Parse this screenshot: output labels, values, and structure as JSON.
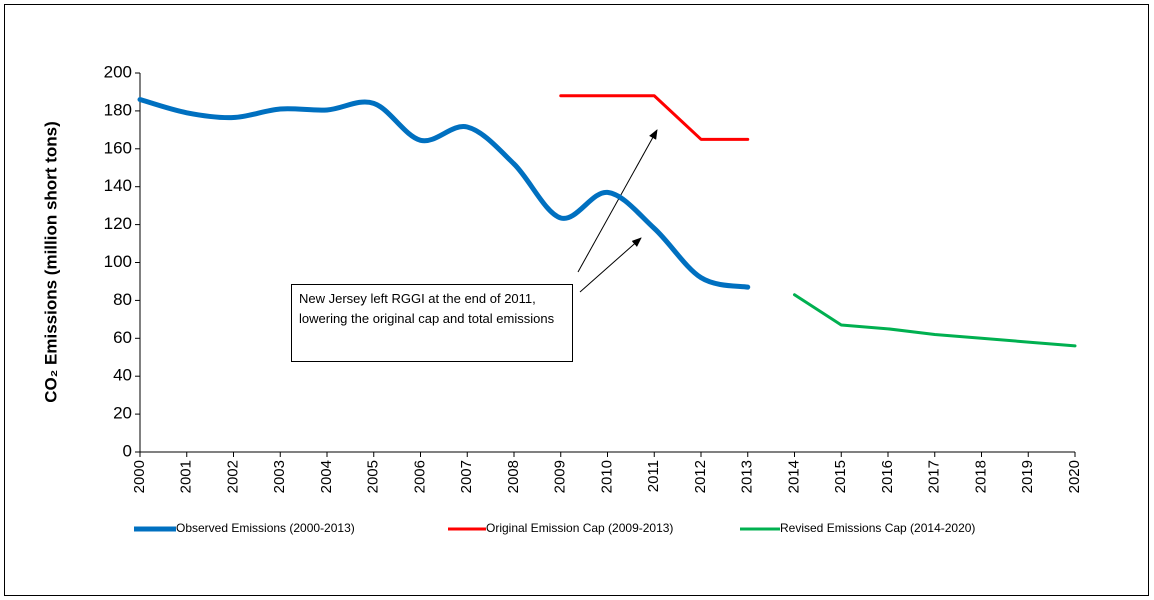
{
  "chart_data": {
    "type": "line",
    "ylabel": "CO₂ Emissions (million short tons)",
    "annotation": "New Jersey left RGGI at the end of 2011, lowering the original cap and total emissions",
    "x": [
      2000,
      2001,
      2002,
      2003,
      2004,
      2005,
      2006,
      2007,
      2008,
      2009,
      2010,
      2011,
      2012,
      2013,
      2014,
      2015,
      2016,
      2017,
      2018,
      2019,
      2020
    ],
    "xlim": [
      2000,
      2020
    ],
    "xticks": [
      2000,
      2001,
      2002,
      2003,
      2004,
      2005,
      2006,
      2007,
      2008,
      2009,
      2010,
      2011,
      2012,
      2013,
      2014,
      2015,
      2016,
      2017,
      2018,
      2019,
      2020
    ],
    "ylim": [
      0,
      200
    ],
    "yticks": [
      0,
      20,
      40,
      60,
      80,
      100,
      120,
      140,
      160,
      180,
      200
    ],
    "legend": "bottom",
    "series": [
      {
        "name": "Observed Emissions (2000-2013)",
        "color": "#0070c0",
        "width": 5,
        "smooth": true,
        "values": [
          186,
          179,
          176.5,
          181,
          180.5,
          184,
          164.5,
          171.5,
          152,
          123.5,
          137,
          118,
          92,
          87,
          null,
          null,
          null,
          null,
          null,
          null,
          null
        ]
      },
      {
        "name": "Original Emission Cap (2009-2013)",
        "color": "#ff0000",
        "width": 3,
        "smooth": false,
        "values": [
          null,
          null,
          null,
          null,
          null,
          null,
          null,
          null,
          null,
          188,
          188,
          188,
          165,
          165,
          null,
          null,
          null,
          null,
          null,
          null,
          null
        ]
      },
      {
        "name": "Revised Emissions Cap (2014-2020)",
        "color": "#00b050",
        "width": 3,
        "smooth": false,
        "values": [
          null,
          null,
          null,
          null,
          null,
          null,
          null,
          null,
          null,
          null,
          null,
          null,
          null,
          null,
          83,
          67,
          65,
          62,
          60,
          58,
          56
        ]
      }
    ]
  }
}
